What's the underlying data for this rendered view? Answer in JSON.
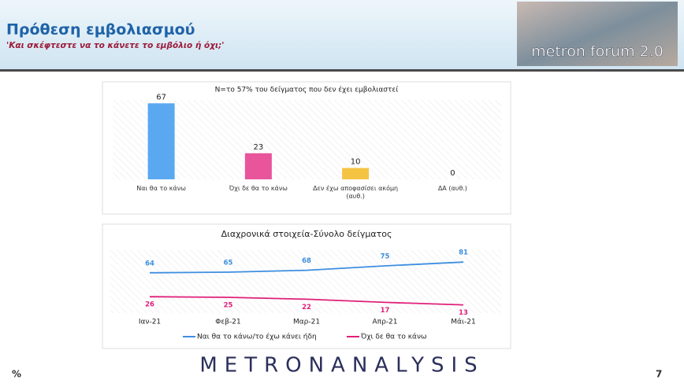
{
  "header": {
    "title": "Πρόθεση εμβολιασμού",
    "subtitle": "'Και σκέφτεστε να το κάνετε το εμβόλιο ή όχι;'",
    "logo": "metron forum 2.0"
  },
  "chart_data": [
    {
      "type": "bar",
      "title": "N=το 57% του δείγματος που δεν έχει εμβολιαστεί",
      "categories": [
        "Ναι θα το κάνω",
        "Όχι δε θα το κάνω",
        "Δεν έχω αποφασίσει ακόμη (αυθ.)",
        "ΔΑ (αυθ.)"
      ],
      "values": [
        67,
        23,
        10,
        0
      ],
      "colors": [
        "#5aa9f0",
        "#e8559b",
        "#f5c342",
        "#9e9e9e"
      ],
      "ylim": [
        0,
        70
      ]
    },
    {
      "type": "line",
      "title": "Διαχρονικά στοιχεία-Σύνολο δείγματος",
      "categories": [
        "Ιαν-21",
        "Φεβ-21",
        "Μαρ-21",
        "Απρ-21",
        "Μάι-21"
      ],
      "series": [
        {
          "name": "Ναι θα το κάνω/το έχω κάνει ήδη",
          "color": "#3d8fe0",
          "values": [
            64,
            65,
            68,
            75,
            81
          ]
        },
        {
          "name": "Όχι δε θα το κάνω",
          "color": "#e0207a",
          "values": [
            26,
            25,
            22,
            17,
            13
          ]
        }
      ],
      "ylim": [
        0,
        100
      ],
      "legend": "bottom"
    }
  ],
  "footer": {
    "unit": "%",
    "brand": "METRONANALYSIS",
    "page": "7"
  }
}
